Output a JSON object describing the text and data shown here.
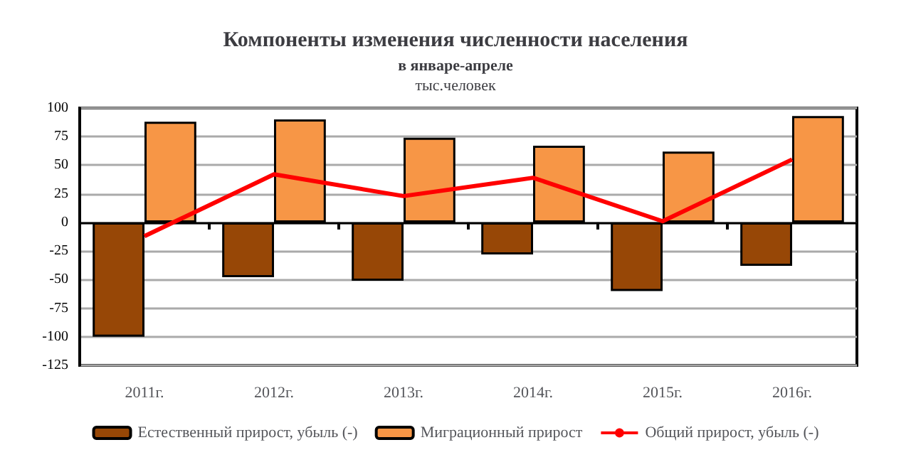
{
  "chart_data": {
    "type": "bar",
    "title": "Компоненты изменения численности населения",
    "subtitle": "в январе-апреле",
    "ylabel": "тыс.человек",
    "categories": [
      "2011г.",
      "2012г.",
      "2013г.",
      "2014г.",
      "2015г.",
      "2016г."
    ],
    "series": [
      {
        "name": "Естественный прирост, убыль (-)",
        "color": "#974706",
        "values": [
          -100,
          -48,
          -51,
          -28,
          -60,
          -38
        ]
      },
      {
        "name": "Миграционный прирост",
        "color": "#f79646",
        "values": [
          88,
          90,
          74,
          67,
          62,
          93
        ]
      },
      {
        "name": "Общий прирост, убыль (-)",
        "type": "line",
        "color": "#ff0000",
        "values": [
          -12,
          42,
          23,
          39,
          1,
          55
        ]
      }
    ],
    "ylim": [
      -125,
      100
    ],
    "yticks": [
      -125,
      -100,
      -75,
      -50,
      -25,
      0,
      25,
      50,
      75,
      100
    ],
    "grid": "y",
    "legend": "bottom",
    "marker": "none"
  }
}
